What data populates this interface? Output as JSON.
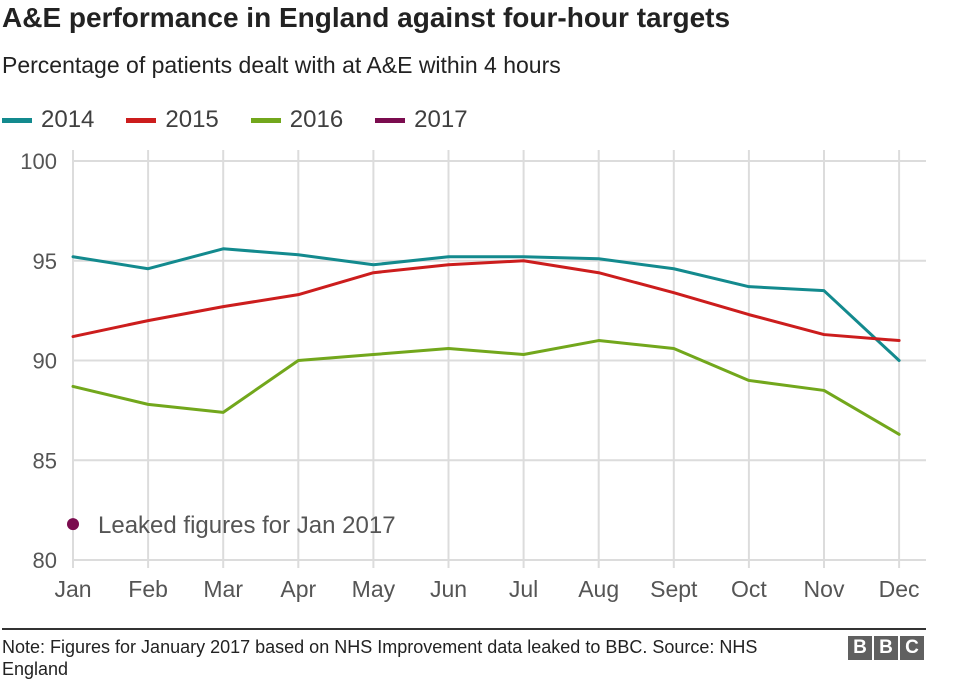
{
  "title": "A&E performance in England against four-hour targets",
  "subtitle": "Percentage of patients dealt with at A&E within 4 hours",
  "legend": [
    {
      "label": "2014",
      "color": "#138a8e"
    },
    {
      "label": "2015",
      "color": "#cc1d1d"
    },
    {
      "label": "2016",
      "color": "#72a71c"
    },
    {
      "label": "2017",
      "color": "#7b0c4f"
    }
  ],
  "footer": {
    "note": "Note: Figures for January 2017 based on NHS Improvement data leaked to BBC. Source: NHS England",
    "logo": [
      "B",
      "B",
      "C"
    ]
  },
  "chart_data": {
    "type": "line",
    "title": "A&E performance in England against four-hour targets",
    "subtitle": "Percentage of patients dealt with at A&E within 4 hours",
    "categories": [
      "Jan",
      "Feb",
      "Mar",
      "Apr",
      "May",
      "Jun",
      "Jul",
      "Aug",
      "Sept",
      "Oct",
      "Nov",
      "Dec"
    ],
    "ylim": [
      80,
      100
    ],
    "yticks": [
      80,
      85,
      90,
      95,
      100
    ],
    "grid": true,
    "legend_position": "top-left",
    "series": [
      {
        "name": "2014",
        "color": "#138a8e",
        "values": [
          95.2,
          94.6,
          95.6,
          95.3,
          94.8,
          95.2,
          95.2,
          95.1,
          94.6,
          93.7,
          93.5,
          90.0
        ]
      },
      {
        "name": "2015",
        "color": "#cc1d1d",
        "values": [
          91.2,
          92.0,
          92.7,
          93.3,
          94.4,
          94.8,
          95.0,
          94.4,
          93.4,
          92.3,
          91.3,
          91.0
        ]
      },
      {
        "name": "2016",
        "color": "#72a71c",
        "values": [
          88.7,
          87.8,
          87.4,
          90.0,
          90.3,
          90.6,
          90.3,
          91.0,
          90.6,
          89.0,
          88.5,
          86.3
        ]
      }
    ],
    "annotation": {
      "text": "Leaked figures for Jan 2017",
      "color": "#7b0c4f",
      "value": 81.8
    }
  }
}
